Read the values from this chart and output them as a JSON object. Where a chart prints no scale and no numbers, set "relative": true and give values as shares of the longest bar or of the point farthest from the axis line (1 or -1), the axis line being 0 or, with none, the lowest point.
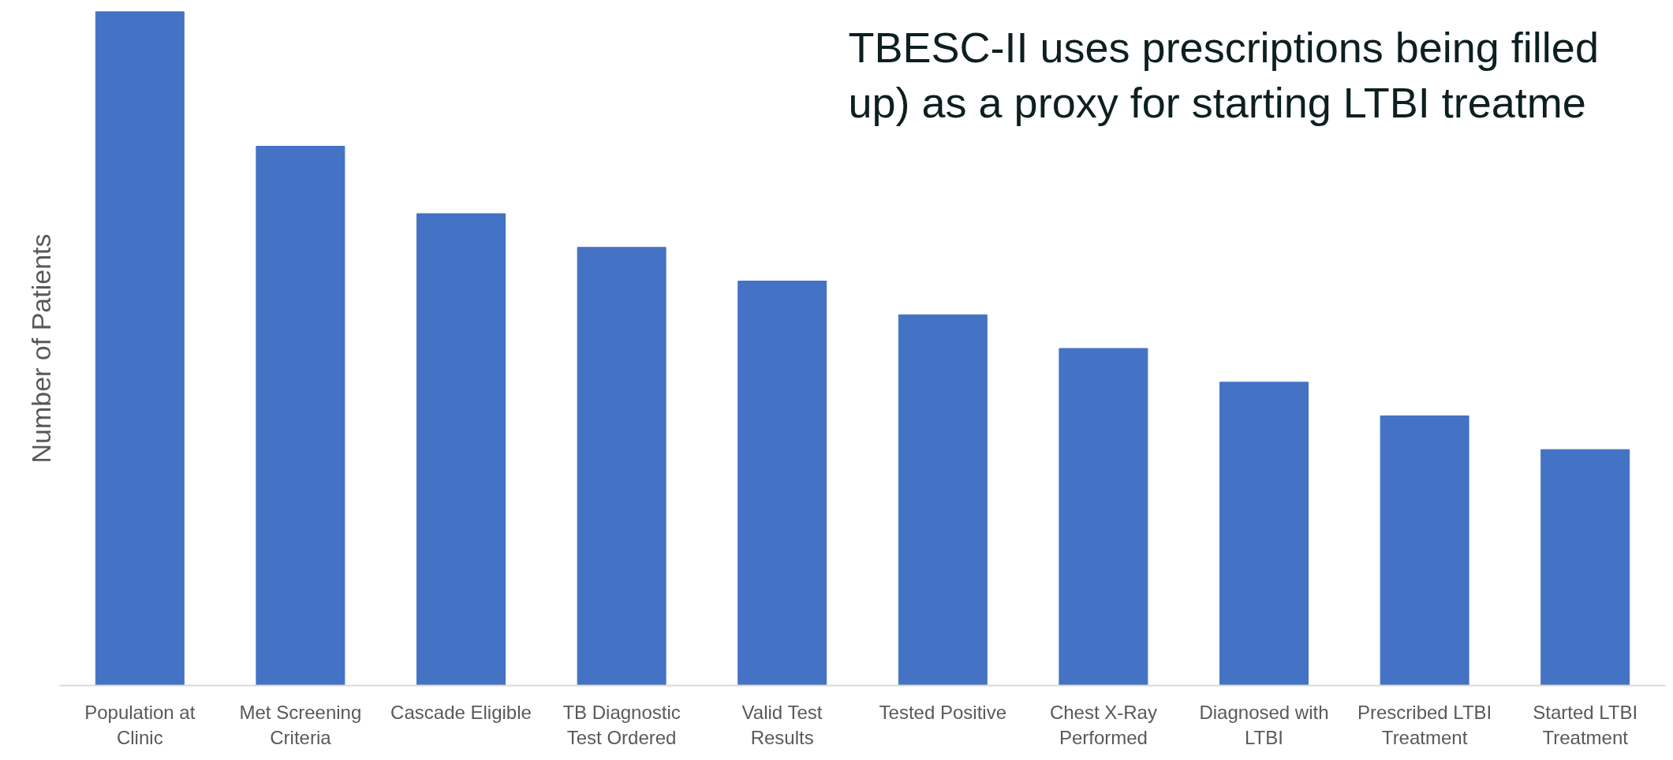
{
  "chart_data": {
    "type": "bar",
    "relative": true,
    "ylabel": "Number of Patients",
    "color": "#4472c4",
    "grid": false,
    "categories": [
      "Population at Clinic",
      "Met Screening Criteria",
      "Cascade Eligible",
      "TB Diagnostic Test Ordered",
      "Valid Test Results",
      "Tested Positive",
      "Chest X-Ray Performed",
      "Diagnosed with LTBI",
      "Prescribed LTBI Treatment",
      "Started LTBI Treatment"
    ],
    "values": [
      1,
      0.8,
      0.7,
      0.65,
      0.6,
      0.55,
      0.5,
      0.45,
      0.4,
      0.35
    ],
    "annotations": [
      "TBESC-II uses prescriptions being filled",
      "up) as a proxy for starting LTBI treatme"
    ]
  }
}
